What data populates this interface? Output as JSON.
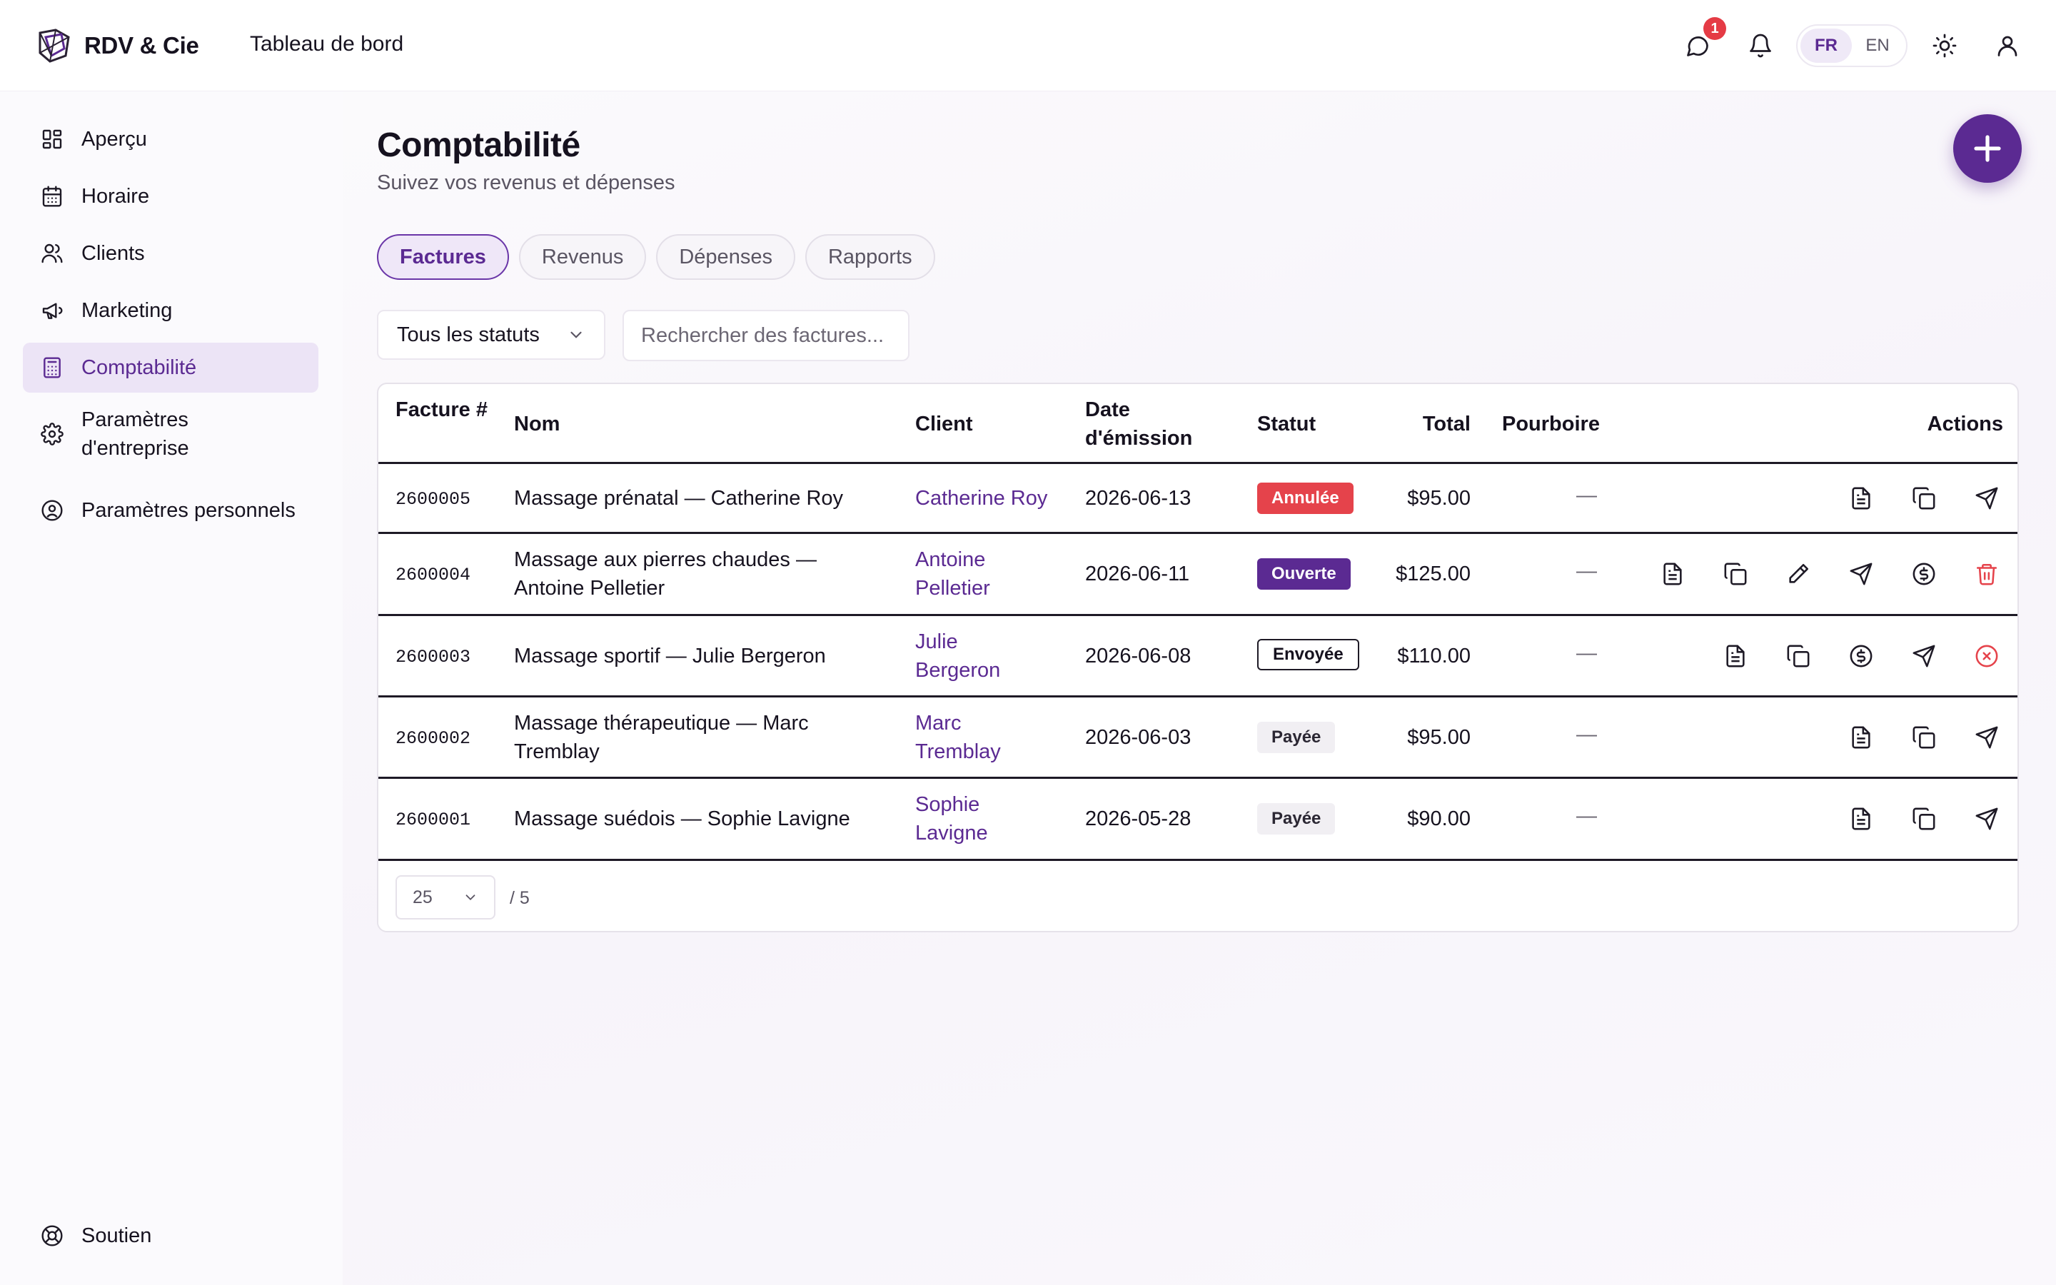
{
  "app": {
    "name": "RDV & Cie",
    "header_title": "Tableau de bord",
    "notification_count": "1"
  },
  "lang": {
    "fr": "FR",
    "en": "EN",
    "active": "FR"
  },
  "sidebar": {
    "items": [
      {
        "label": "Aperçu",
        "icon": "dashboard-icon"
      },
      {
        "label": "Horaire",
        "icon": "calendar-icon"
      },
      {
        "label": "Clients",
        "icon": "users-icon"
      },
      {
        "label": "Marketing",
        "icon": "megaphone-icon"
      },
      {
        "label": "Comptabilité",
        "icon": "calculator-icon",
        "active": true
      },
      {
        "label": "Paramètres d'entreprise",
        "icon": "gear-icon"
      },
      {
        "label": "Paramètres personnels",
        "icon": "user-circle-icon"
      }
    ],
    "support": "Soutien"
  },
  "page": {
    "title": "Comptabilité",
    "subtitle": "Suivez vos revenus et dépenses"
  },
  "tabs": [
    {
      "label": "Factures",
      "active": true
    },
    {
      "label": "Revenus"
    },
    {
      "label": "Dépenses"
    },
    {
      "label": "Rapports"
    }
  ],
  "filters": {
    "status_value": "Tous les statuts",
    "search_placeholder": "Rechercher des factures..."
  },
  "table": {
    "headers": {
      "invoice": "Facture #",
      "name": "Nom",
      "client": "Client",
      "date": "Date d'émission",
      "status": "Statut",
      "total": "Total",
      "tip": "Pourboire",
      "actions": "Actions"
    },
    "rows": [
      {
        "id": "2600005",
        "name": "Massage prénatal — Catherine Roy",
        "client": "Catherine Roy",
        "date": "2026-06-13",
        "status": "Annulée",
        "total": "$95.00",
        "tip": "—"
      },
      {
        "id": "2600004",
        "name": "Massage aux pierres chaudes — Antoine Pelletier",
        "client": "Antoine Pelletier",
        "date": "2026-06-11",
        "status": "Ouverte",
        "total": "$125.00",
        "tip": "—"
      },
      {
        "id": "2600003",
        "name": "Massage sportif — Julie Bergeron",
        "client": "Julie Bergeron",
        "date": "2026-06-08",
        "status": "Envoyée",
        "total": "$110.00",
        "tip": "—"
      },
      {
        "id": "2600002",
        "name": "Massage thérapeutique — Marc Tremblay",
        "client": "Marc Tremblay",
        "date": "2026-06-03",
        "status": "Payée",
        "total": "$95.00",
        "tip": "—"
      },
      {
        "id": "2600001",
        "name": "Massage suédois — Sophie Lavigne",
        "client": "Sophie Lavigne",
        "date": "2026-05-28",
        "status": "Payée",
        "total": "$90.00",
        "tip": "—"
      }
    ]
  },
  "pagination": {
    "page_size": "25",
    "total": "/ 5"
  },
  "colors": {
    "accent": "#5b2a92",
    "danger": "#e5434b"
  }
}
